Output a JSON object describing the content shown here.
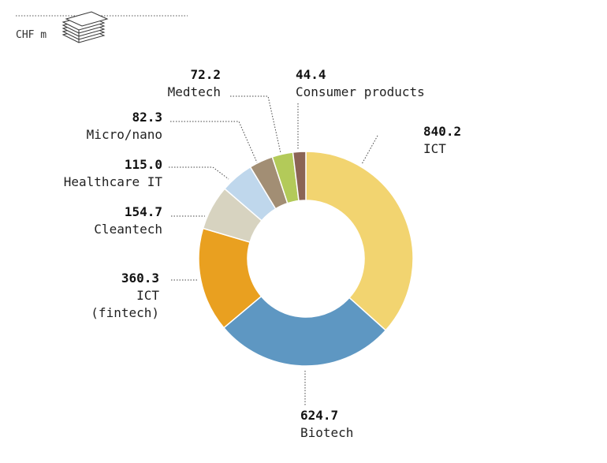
{
  "chart_data": {
    "type": "pie",
    "donut": true,
    "unit_label": "CHF m",
    "slices": [
      {
        "label": [
          "ICT"
        ],
        "value": 840.2,
        "value_label": "840.2",
        "color": "#F2D470"
      },
      {
        "label": [
          "Biotech"
        ],
        "value": 624.7,
        "value_label": "624.7",
        "color": "#5E97C2"
      },
      {
        "label": [
          "ICT",
          "(fintech)"
        ],
        "value": 360.3,
        "value_label": "360.3",
        "color": "#E9A020"
      },
      {
        "label": [
          "Cleantech"
        ],
        "value": 154.7,
        "value_label": "154.7",
        "color": "#D7D3C0"
      },
      {
        "label": [
          "Healthcare IT"
        ],
        "value": 115.0,
        "value_label": "115.0",
        "color": "#BFD7EC"
      },
      {
        "label": [
          "Micro/nano"
        ],
        "value": 82.3,
        "value_label": "82.3",
        "color": "#A28E74"
      },
      {
        "label": [
          "Medtech"
        ],
        "value": 72.2,
        "value_label": "72.2",
        "color": "#B3CA59"
      },
      {
        "label": [
          "Consumer products"
        ],
        "value": 44.4,
        "value_label": "44.4",
        "color": "#8B6455"
      }
    ]
  }
}
